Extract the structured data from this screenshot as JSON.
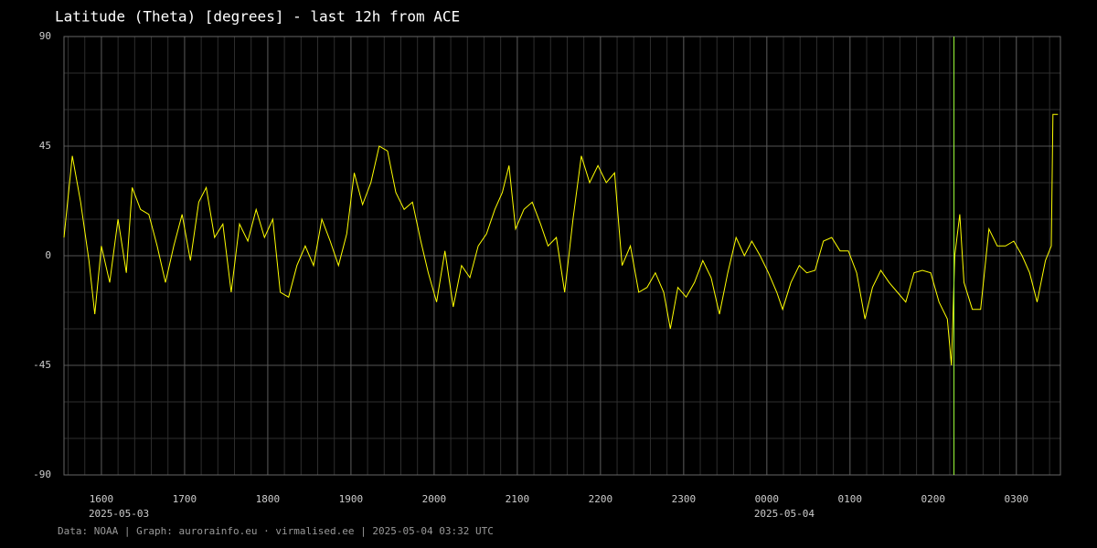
{
  "chart_data": {
    "type": "line",
    "title": "Latitude (Theta) [degrees] - last 12h from ACE",
    "footer": "Data: NOAA | Graph: aurorainfo.eu · virmalised.ee | 2025-05-04 03:32 UTC",
    "x": [
      15.55,
      15.65,
      15.75,
      15.85,
      15.92,
      16.0,
      16.1,
      16.2,
      16.3,
      16.37,
      16.47,
      16.57,
      16.67,
      16.77,
      16.87,
      16.97,
      17.07,
      17.17,
      17.26,
      17.36,
      17.46,
      17.56,
      17.66,
      17.76,
      17.86,
      17.96,
      18.06,
      18.15,
      18.25,
      18.35,
      18.45,
      18.55,
      18.65,
      18.75,
      18.85,
      18.95,
      19.04,
      19.14,
      19.24,
      19.34,
      19.44,
      19.54,
      19.64,
      19.74,
      19.84,
      19.93,
      20.03,
      20.13,
      20.23,
      20.33,
      20.43,
      20.53,
      20.63,
      20.73,
      20.82,
      20.9,
      20.98,
      21.08,
      21.18,
      21.28,
      21.37,
      21.47,
      21.57,
      21.67,
      21.77,
      21.87,
      21.97,
      22.07,
      22.17,
      22.26,
      22.36,
      22.46,
      22.56,
      22.66,
      22.76,
      22.84,
      22.93,
      23.03,
      23.13,
      23.23,
      23.33,
      23.43,
      23.53,
      23.63,
      23.73,
      23.82,
      23.92,
      24.02,
      24.12,
      24.19,
      24.29,
      24.39,
      24.48,
      24.58,
      24.68,
      24.78,
      24.88,
      24.98,
      25.08,
      25.18,
      25.27,
      25.37,
      25.47,
      25.57,
      25.67,
      25.77,
      25.87,
      25.97,
      26.07,
      26.17,
      26.22,
      26.26,
      26.32,
      26.37,
      26.47,
      26.57,
      26.67,
      26.77,
      26.87,
      26.97,
      27.07,
      27.16,
      27.25,
      27.35,
      27.42,
      27.44,
      27.5
    ],
    "series": [
      {
        "name": "Theta",
        "color": "#ffff00",
        "values": [
          7.5,
          41,
          22,
          -2,
          -24,
          4,
          -11,
          15,
          -7,
          28,
          19,
          17,
          4,
          -11,
          4,
          17,
          -2,
          22,
          28,
          7.5,
          13,
          -15,
          13,
          6,
          19,
          7.5,
          15,
          -15,
          -17,
          -4,
          4,
          -4,
          15,
          6,
          -4,
          9,
          34,
          21,
          30,
          45,
          43,
          26,
          19,
          22,
          6,
          -7,
          -19,
          2,
          -21,
          -4,
          -9,
          4,
          9,
          19,
          26,
          37,
          11,
          19,
          22,
          13,
          4,
          7.5,
          -15,
          15,
          41,
          30,
          37,
          30,
          34,
          -4,
          4,
          -15,
          -13,
          -7,
          -15,
          -30,
          -13,
          -17,
          -11,
          -2,
          -9,
          -24,
          -7,
          7.5,
          0,
          6,
          0,
          -7,
          -15,
          -22,
          -11,
          -4,
          -7,
          -6,
          6,
          7.5,
          2,
          2,
          -7,
          -26,
          -13,
          -6,
          -11,
          -15,
          -19,
          -7,
          -6,
          -7,
          -19,
          -26,
          -45,
          0,
          17,
          -11,
          -22,
          -22,
          11,
          4,
          4,
          6,
          0,
          -7,
          -19,
          -2,
          4,
          58,
          58
        ]
      }
    ],
    "xlim": [
      15.55,
      27.53
    ],
    "ylim": [
      -90,
      90
    ],
    "xticks": [
      {
        "value": 16,
        "label": "1600"
      },
      {
        "value": 17,
        "label": "1700"
      },
      {
        "value": 18,
        "label": "1800"
      },
      {
        "value": 19,
        "label": "1900"
      },
      {
        "value": 20,
        "label": "2000"
      },
      {
        "value": 21,
        "label": "2100"
      },
      {
        "value": 22,
        "label": "2200"
      },
      {
        "value": 23,
        "label": "2300"
      },
      {
        "value": 24,
        "label": "0000"
      },
      {
        "value": 25,
        "label": "0100"
      },
      {
        "value": 26,
        "label": "0200"
      },
      {
        "value": 27,
        "label": "0300"
      }
    ],
    "date_labels": [
      {
        "value": 16,
        "label": "2025-05-03"
      },
      {
        "value": 24,
        "label": "2025-05-04"
      }
    ],
    "yticks": [
      90,
      45,
      0,
      -45,
      -90
    ],
    "grid": true,
    "minor_grid": {
      "x_step": 0.2,
      "y_step": 15
    },
    "marker_x": {
      "value": 26.25,
      "color": "#9cff3a"
    }
  }
}
